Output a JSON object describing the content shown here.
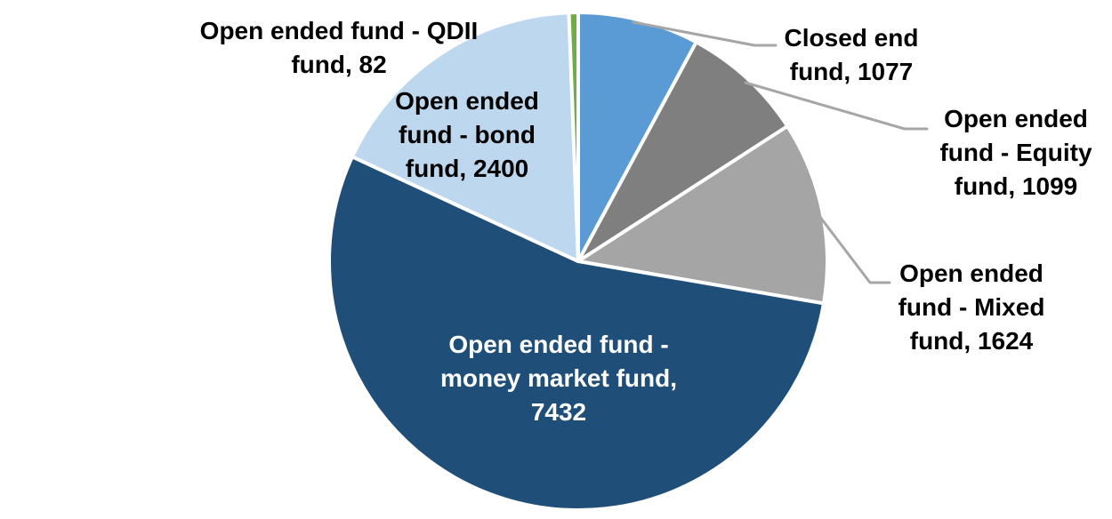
{
  "chart_data": {
    "type": "pie",
    "title": "",
    "background_color": "#FFFFFF",
    "total": 13714,
    "start_angle_deg": 0,
    "direction": "clockwise",
    "slice_border_color": "#FFFFFF",
    "leader_line_color": "#A6A6A6",
    "default_label_color": "#000000",
    "slices": [
      {
        "category": "Closed end fund",
        "value": 1077,
        "color": "#5B9BD5",
        "label_lines": [
          "Closed end",
          "fund, 1077"
        ],
        "label_position": "outside-right",
        "label_color": "#000000",
        "leader_line": true
      },
      {
        "category": "Open ended fund - Equity fund",
        "value": 1099,
        "color": "#7F7F7F",
        "label_lines": [
          "Open ended",
          "fund - Equity",
          "fund, 1099"
        ],
        "label_position": "outside-right",
        "label_color": "#000000",
        "leader_line": true
      },
      {
        "category": "Open ended fund - Mixed fund",
        "value": 1624,
        "color": "#A5A5A5",
        "label_lines": [
          "Open ended",
          "fund - Mixed",
          "fund, 1624"
        ],
        "label_position": "outside-right",
        "label_color": "#000000",
        "leader_line": true
      },
      {
        "category": "Open ended fund - money market fund",
        "value": 7432,
        "color": "#1F4E79",
        "label_lines": [
          "Open ended fund -",
          "money market fund,",
          "7432"
        ],
        "label_position": "inside",
        "label_color": "#FFFFFF",
        "leader_line": false
      },
      {
        "category": "Open ended fund - bond fund",
        "value": 2400,
        "color": "#BDD7EE",
        "label_lines": [
          "Open ended",
          "fund - bond",
          "fund, 2400"
        ],
        "label_position": "inside",
        "label_color": "#000000",
        "leader_line": false
      },
      {
        "category": "Open ended fund - QDII fund",
        "value": 82,
        "color": "#70AD47",
        "label_lines": [
          "Open ended fund - QDII",
          "fund, 82"
        ],
        "label_position": "outside-left",
        "label_color": "#000000",
        "leader_line": false
      }
    ]
  }
}
